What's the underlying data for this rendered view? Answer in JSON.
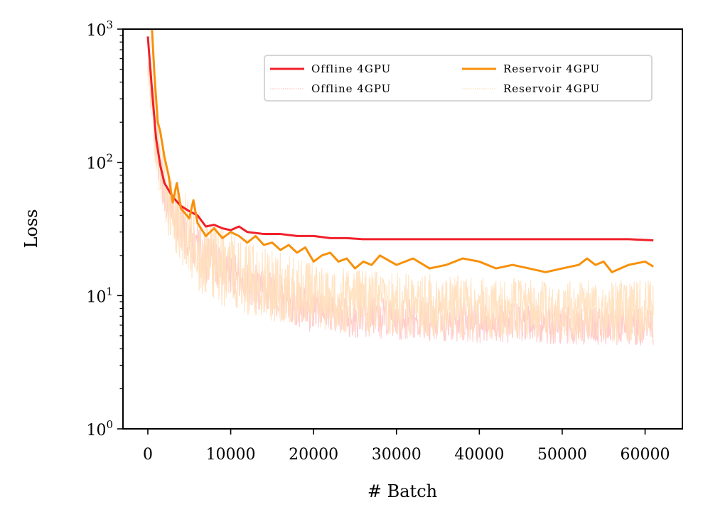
{
  "chart_data": {
    "type": "line",
    "xlabel": "# Batch",
    "ylabel": "Loss",
    "yscale": "log",
    "xlim": [
      -3000,
      64500
    ],
    "ylim": [
      1,
      1000
    ],
    "x_ticks": [
      {
        "value": 0,
        "label": "0"
      },
      {
        "value": 10000,
        "label": "10000"
      },
      {
        "value": 20000,
        "label": "20000"
      },
      {
        "value": 30000,
        "label": "30000"
      },
      {
        "value": 40000,
        "label": "40000"
      },
      {
        "value": 50000,
        "label": "50000"
      },
      {
        "value": 60000,
        "label": "60000"
      }
    ],
    "y_ticks": [
      {
        "value": 1,
        "base": "10",
        "exp": "0"
      },
      {
        "value": 10,
        "base": "10",
        "exp": "1"
      },
      {
        "value": 100,
        "base": "10",
        "exp": "2"
      },
      {
        "value": 1000,
        "base": "10",
        "exp": "3"
      }
    ],
    "legend_position": "top-right",
    "legend_columns": 2,
    "grid": false,
    "series": [
      {
        "name": "Offline 4GPU",
        "style": "smoothed",
        "color": "#f0202a",
        "x": [
          0,
          500,
          1000,
          1500,
          2000,
          2500,
          3000,
          4000,
          5000,
          6000,
          7000,
          8000,
          9000,
          10000,
          11000,
          12000,
          14000,
          16000,
          18000,
          20000,
          22000,
          24000,
          26000,
          28000,
          30000,
          35000,
          40000,
          45000,
          50000,
          55000,
          58000,
          61000
        ],
        "y": [
          880,
          350,
          150,
          95,
          70,
          62,
          55,
          47,
          43,
          40,
          33,
          34,
          32,
          31,
          33,
          30,
          29,
          29,
          28,
          28,
          27,
          27,
          26.5,
          26.5,
          26.5,
          26.5,
          26.5,
          26.5,
          26.5,
          26.5,
          26.5,
          26
        ]
      },
      {
        "name": "Offline 4GPU",
        "style": "raw",
        "color": "#ffc7c7",
        "x": [
          0,
          1000,
          2000,
          3000,
          5000,
          7000,
          10000,
          15000,
          20000,
          25000,
          30000,
          40000,
          50000,
          61000
        ],
        "y_low": [
          500,
          90,
          40,
          28,
          18,
          12,
          10,
          7,
          5.2,
          4.8,
          4.6,
          4.4,
          4.3,
          4.2
        ],
        "y_high": [
          880,
          220,
          80,
          60,
          42,
          30,
          22,
          15,
          12,
          10,
          9.5,
          9,
          8.5,
          8
        ]
      },
      {
        "name": "Reservoir 4GPU",
        "style": "smoothed",
        "color": "#f7900a",
        "x": [
          500,
          800,
          1200,
          1500,
          2000,
          2500,
          3000,
          3500,
          4000,
          5000,
          5500,
          6000,
          7000,
          8000,
          9000,
          10000,
          11000,
          12000,
          13000,
          14000,
          15000,
          16000,
          17000,
          18000,
          19000,
          20000,
          21000,
          22000,
          23000,
          24000,
          25000,
          26000,
          27000,
          28000,
          30000,
          32000,
          34000,
          36000,
          38000,
          40000,
          42000,
          44000,
          46000,
          48000,
          50000,
          52000,
          53000,
          54000,
          55000,
          56000,
          58000,
          60000,
          61000
        ],
        "y": [
          1000,
          450,
          200,
          170,
          110,
          80,
          50,
          70,
          45,
          38,
          52,
          35,
          28,
          32,
          27,
          30,
          28,
          25,
          28,
          24,
          25,
          22,
          24,
          21,
          23,
          18,
          20,
          21,
          18,
          19,
          16,
          18,
          17,
          20,
          17,
          19,
          16,
          17,
          19,
          18,
          16,
          17,
          16,
          15,
          16,
          17,
          19,
          17,
          18,
          15,
          17,
          18,
          16.5
        ]
      },
      {
        "name": "Reservoir 4GPU",
        "style": "raw",
        "color": "#ffe0bd",
        "x": [
          0,
          1000,
          2000,
          3000,
          5000,
          7000,
          10000,
          15000,
          20000,
          25000,
          30000,
          40000,
          50000,
          61000
        ],
        "y_low": [
          400,
          80,
          35,
          22,
          14,
          9,
          8,
          6,
          5.5,
          5.2,
          5,
          4.8,
          4.6,
          4.4
        ],
        "y_high": [
          1000,
          260,
          110,
          75,
          55,
          38,
          30,
          22,
          18,
          16,
          15,
          14,
          13,
          13
        ]
      }
    ]
  }
}
